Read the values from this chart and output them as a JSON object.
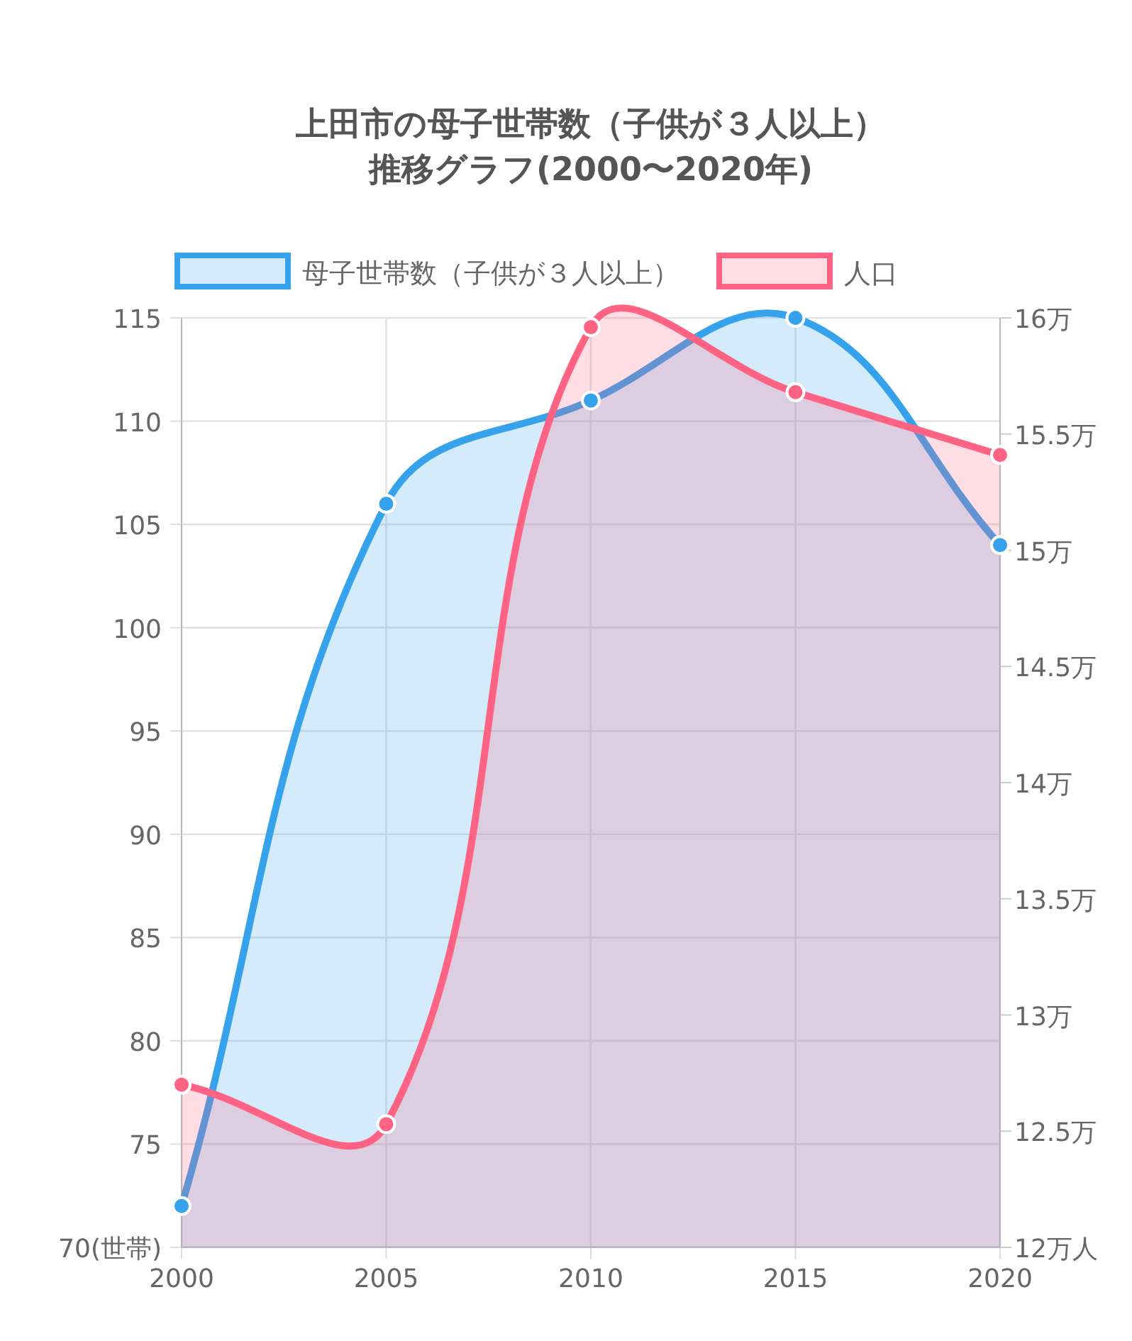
{
  "chart_data": {
    "type": "area",
    "title": "上田市の母子世帯数（子供が３人以上）",
    "subtitle": "推移グラフ(2000〜2020年)",
    "x": [
      2000,
      2005,
      2010,
      2015,
      2020
    ],
    "xlim": [
      2000,
      2020
    ],
    "xticks": [
      2000,
      2005,
      2010,
      2015,
      2020
    ],
    "ylim": [
      70,
      115
    ],
    "yticks": [
      {
        "value": 70,
        "label": "70(世帯)"
      },
      75,
      80,
      85,
      90,
      95,
      100,
      105,
      110,
      115
    ],
    "y2lim": [
      12,
      16
    ],
    "y2ticks": [
      {
        "value": 12,
        "label": "12万人"
      },
      {
        "value": 12.5,
        "label": "12.5万"
      },
      {
        "value": 13,
        "label": "13万"
      },
      {
        "value": 13.5,
        "label": "13.5万"
      },
      {
        "value": 14,
        "label": "14万"
      },
      {
        "value": 14.5,
        "label": "14.5万"
      },
      {
        "value": 15,
        "label": "15万"
      },
      {
        "value": 15.5,
        "label": "15.5万"
      },
      {
        "value": 16,
        "label": "16万"
      }
    ],
    "series": [
      {
        "name": "母子世帯数（子供が３人以上）",
        "color": "#36a2eb",
        "values": [
          72,
          106,
          111,
          115,
          104
        ]
      },
      {
        "name": "人口",
        "color": "#ff6384",
        "axis": "y2",
        "values": [
          12.7,
          12.53,
          15.96,
          15.68,
          15.41
        ]
      }
    ],
    "grid": true,
    "legend": "top",
    "marker": "circle"
  }
}
